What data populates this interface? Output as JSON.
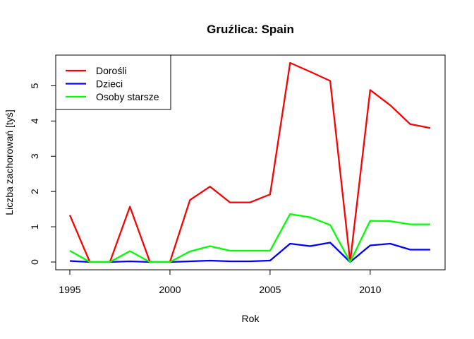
{
  "chart_data": {
    "type": "line",
    "title": "Gruźlica: Spain",
    "xlabel": "Rok",
    "ylabel": "Liczba zachorowań [tyś]",
    "x": [
      1995,
      1996,
      1997,
      1998,
      1999,
      2000,
      2001,
      2002,
      2003,
      2004,
      2005,
      2006,
      2007,
      2008,
      2009,
      2010,
      2011,
      2012,
      2013
    ],
    "xlim": [
      1995,
      2013
    ],
    "ylim": [
      0,
      5.65
    ],
    "x_ticks": [
      1995,
      2000,
      2005,
      2010
    ],
    "y_ticks": [
      0,
      1,
      2,
      3,
      4,
      5
    ],
    "grid": false,
    "legend_position": "top-left",
    "series": [
      {
        "name": "Dorośli",
        "color": "#ff0000",
        "values": [
          1.33,
          0.0,
          0.0,
          1.57,
          0.0,
          0.0,
          1.76,
          2.14,
          1.69,
          1.69,
          1.92,
          5.65,
          5.4,
          5.14,
          0.0,
          4.88,
          4.45,
          3.91,
          3.8
        ]
      },
      {
        "name": "Dzieci",
        "color": "#0000ff",
        "values": [
          0.03,
          0.0,
          0.0,
          0.02,
          0.0,
          0.0,
          0.02,
          0.04,
          0.02,
          0.02,
          0.04,
          0.52,
          0.45,
          0.55,
          0.0,
          0.47,
          0.52,
          0.35,
          0.35
        ]
      },
      {
        "name": "Osoby starsze",
        "color": "#00ff00",
        "values": [
          0.32,
          0.0,
          0.0,
          0.31,
          0.0,
          0.0,
          0.3,
          0.45,
          0.32,
          0.32,
          0.32,
          1.36,
          1.27,
          1.05,
          0.0,
          1.17,
          1.16,
          1.07,
          1.07
        ]
      }
    ]
  }
}
